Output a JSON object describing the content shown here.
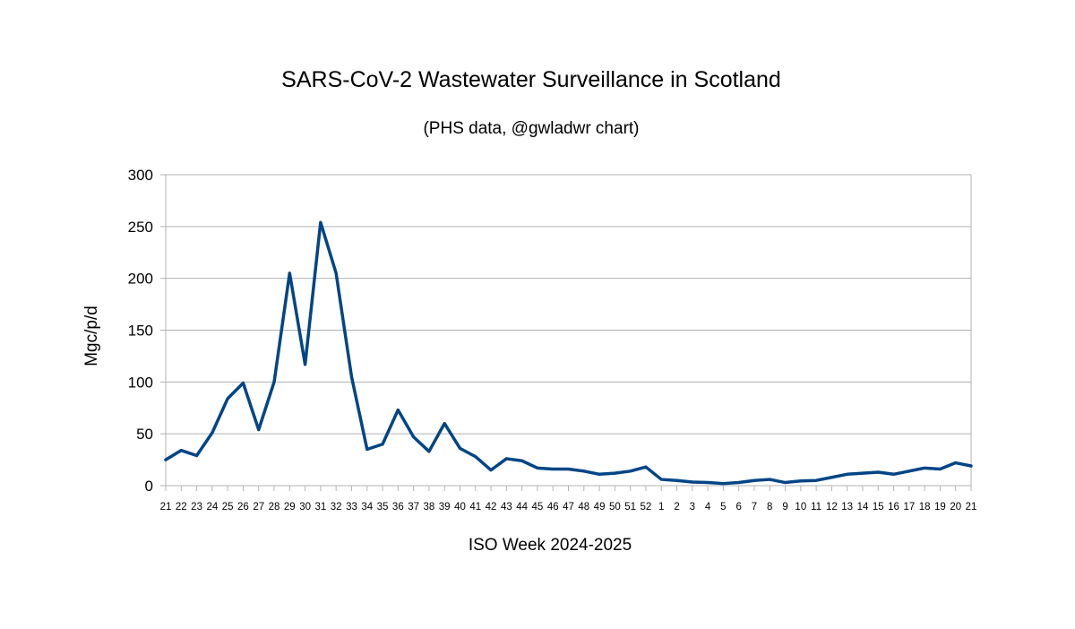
{
  "chart_data": {
    "type": "line",
    "title": "SARS-CoV-2 Wastewater Surveillance in Scotland",
    "subtitle": "(PHS data, @gwladwr chart)",
    "xlabel": "ISO Week 2024-2025",
    "ylabel": "Mgc/p/d",
    "ylim": [
      0,
      300
    ],
    "yticks": [
      0,
      50,
      100,
      150,
      200,
      250,
      300
    ],
    "grid": true,
    "legend": "none",
    "line_color": "#004586",
    "categories": [
      "21",
      "22",
      "23",
      "24",
      "25",
      "26",
      "27",
      "28",
      "29",
      "30",
      "31",
      "32",
      "33",
      "34",
      "35",
      "36",
      "37",
      "38",
      "39",
      "40",
      "41",
      "42",
      "43",
      "44",
      "45",
      "46",
      "47",
      "48",
      "49",
      "50",
      "51",
      "52",
      "1",
      "2",
      "3",
      "4",
      "5",
      "6",
      "7",
      "8",
      "9",
      "10",
      "11",
      "12",
      "13",
      "14",
      "15",
      "16",
      "17",
      "18",
      "19",
      "20",
      "21"
    ],
    "series": [
      {
        "name": "Mgc/p/d",
        "values": [
          25,
          34,
          29,
          51,
          84,
          99,
          54,
          100,
          205,
          117,
          254,
          205,
          105,
          35,
          40,
          73,
          47,
          33,
          60,
          36,
          28,
          15,
          26,
          24,
          17,
          16,
          16,
          14,
          11,
          12,
          14,
          18,
          6,
          5,
          3.5,
          3,
          2,
          3,
          5,
          6,
          3,
          4.5,
          5,
          8,
          11,
          12,
          13,
          11,
          14,
          17,
          16,
          22,
          19
        ]
      }
    ]
  }
}
